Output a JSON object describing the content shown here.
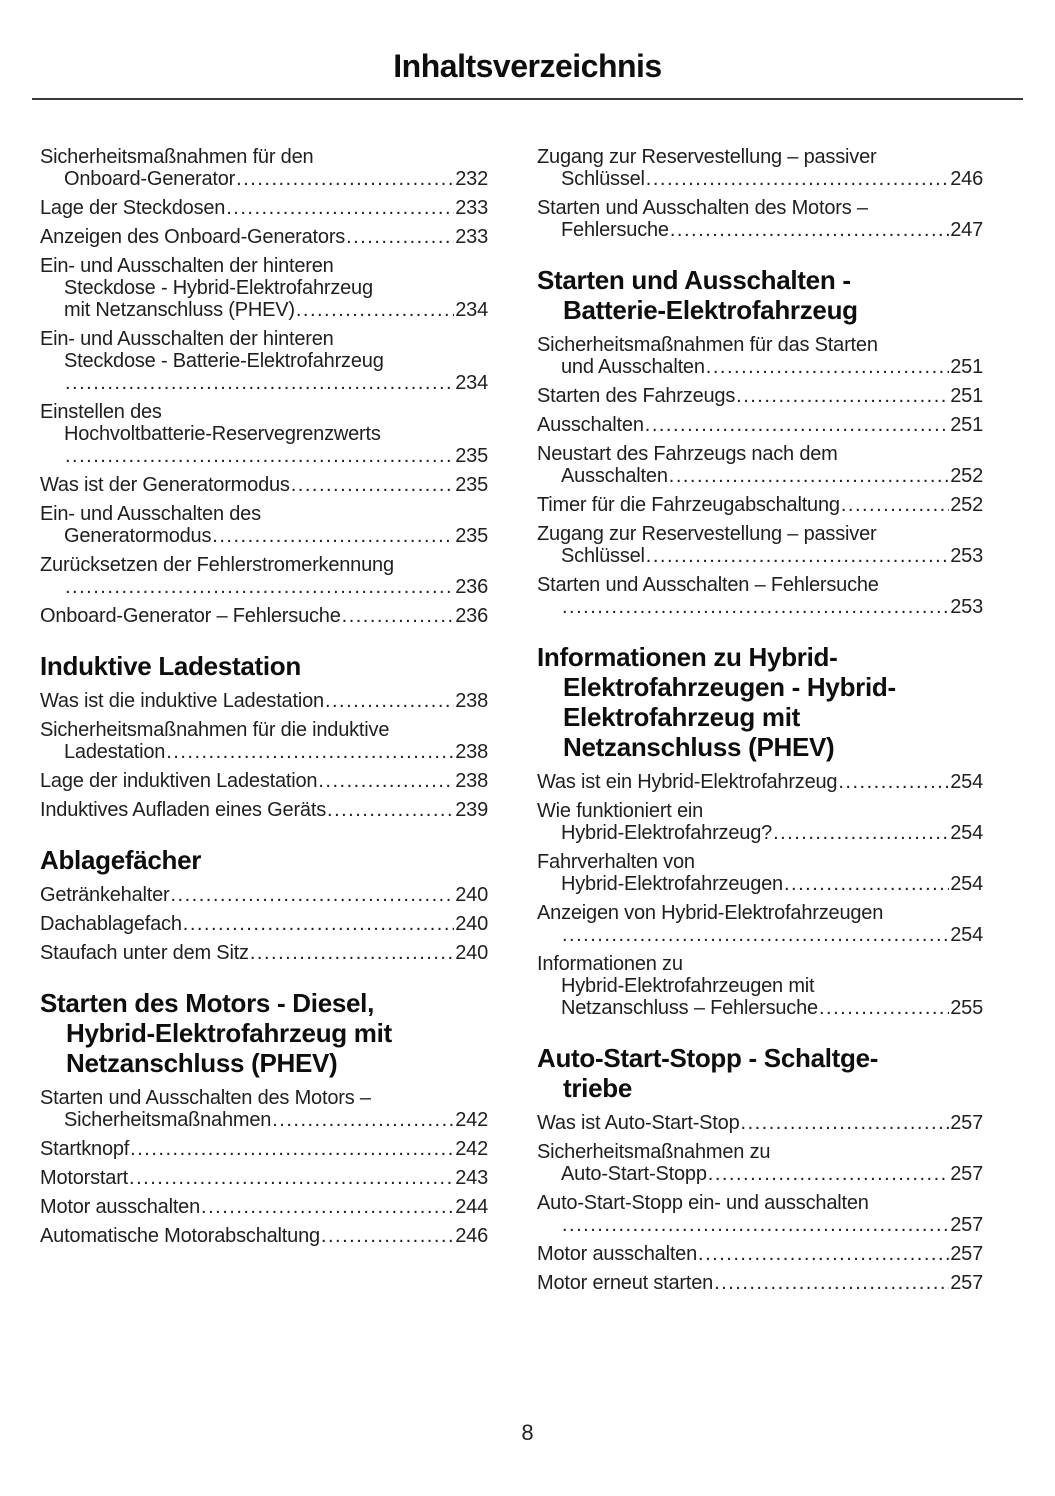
{
  "page": {
    "title": "Inhaltsverzeichnis",
    "page_number": "8",
    "text_color": "#1f1f21",
    "heading_color": "#0e0e10",
    "rule_color": "#3a3a3a",
    "background_color": "#ffffff"
  },
  "toc": {
    "left_column": [
      {
        "type": "entry",
        "lines": [
          "Sicherheitsmaßnahmen für den",
          "Onboard-Generator"
        ],
        "page": "232"
      },
      {
        "type": "entry",
        "lines": [
          "Lage der Steckdosen"
        ],
        "page": "233"
      },
      {
        "type": "entry",
        "lines": [
          "Anzeigen des Onboard-Generators"
        ],
        "page": "233"
      },
      {
        "type": "entry",
        "lines": [
          "Ein- und Ausschalten der hinteren",
          "Steckdose - Hybrid-Elektrofahrzeug",
          "mit Netzanschluss (PHEV)"
        ],
        "page": "234"
      },
      {
        "type": "entry",
        "lines": [
          "Ein- und Ausschalten der hinteren",
          "Steckdose - Batterie-Elektrofahrzeug"
        ],
        "page": "234",
        "dots_own_line": true
      },
      {
        "type": "entry",
        "lines": [
          "Einstellen des",
          "Hochvoltbatterie-Reservegrenzwerts"
        ],
        "page": "235",
        "dots_own_line": true
      },
      {
        "type": "entry",
        "lines": [
          "Was ist der Generatormodus"
        ],
        "page": "235"
      },
      {
        "type": "entry",
        "lines": [
          "Ein- und Ausschalten des",
          "Generatormodus"
        ],
        "page": "235"
      },
      {
        "type": "entry",
        "lines": [
          "Zurücksetzen der Fehlerstromerkennung"
        ],
        "page": "236",
        "dots_own_line": true
      },
      {
        "type": "entry",
        "lines": [
          "Onboard-Generator – Fehlersuche"
        ],
        "page": "236"
      },
      {
        "type": "heading",
        "lines": [
          "Induktive Ladestation"
        ]
      },
      {
        "type": "entry",
        "lines": [
          "Was ist die induktive Ladestation"
        ],
        "page": "238"
      },
      {
        "type": "entry",
        "lines": [
          "Sicherheitsmaßnahmen für die induktive",
          "Ladestation"
        ],
        "page": "238"
      },
      {
        "type": "entry",
        "lines": [
          "Lage der induktiven Ladestation"
        ],
        "page": "238"
      },
      {
        "type": "entry",
        "lines": [
          "Induktives Aufladen eines Geräts"
        ],
        "page": "239"
      },
      {
        "type": "heading",
        "lines": [
          "Ablagefächer"
        ]
      },
      {
        "type": "entry",
        "lines": [
          "Getränkehalter"
        ],
        "page": "240"
      },
      {
        "type": "entry",
        "lines": [
          "Dachablagefach"
        ],
        "page": "240"
      },
      {
        "type": "entry",
        "lines": [
          "Staufach unter dem Sitz"
        ],
        "page": "240"
      },
      {
        "type": "heading",
        "lines": [
          "Starten des Motors - Diesel,",
          "Hybrid-Elektrofahrzeug mit",
          "Netzanschluss (PHEV)"
        ]
      },
      {
        "type": "entry",
        "lines": [
          "Starten und Ausschalten des Motors –",
          "Sicherheitsmaßnahmen"
        ],
        "page": "242"
      },
      {
        "type": "entry",
        "lines": [
          "Startknopf"
        ],
        "page": "242"
      },
      {
        "type": "entry",
        "lines": [
          "Motorstart"
        ],
        "page": "243"
      },
      {
        "type": "entry",
        "lines": [
          "Motor ausschalten"
        ],
        "page": "244"
      },
      {
        "type": "entry",
        "lines": [
          "Automatische Motorabschaltung"
        ],
        "page": "246"
      }
    ],
    "right_column": [
      {
        "type": "entry",
        "lines": [
          "Zugang zur Reservestellung – passiver",
          "Schlüssel"
        ],
        "page": "246"
      },
      {
        "type": "entry",
        "lines": [
          "Starten und Ausschalten des Motors –",
          "Fehlersuche"
        ],
        "page": "247"
      },
      {
        "type": "heading",
        "lines": [
          "Starten und Ausschalten -",
          "Batterie-Elektrofahrzeug"
        ]
      },
      {
        "type": "entry",
        "lines": [
          "Sicherheitsmaßnahmen für das Starten",
          "und Ausschalten"
        ],
        "page": "251"
      },
      {
        "type": "entry",
        "lines": [
          "Starten des Fahrzeugs"
        ],
        "page": "251"
      },
      {
        "type": "entry",
        "lines": [
          "Ausschalten"
        ],
        "page": "251"
      },
      {
        "type": "entry",
        "lines": [
          "Neustart des Fahrzeugs nach dem",
          "Ausschalten"
        ],
        "page": "252"
      },
      {
        "type": "entry",
        "lines": [
          "Timer für die Fahrzeugabschaltung"
        ],
        "page": "252"
      },
      {
        "type": "entry",
        "lines": [
          "Zugang zur Reservestellung – passiver",
          "Schlüssel"
        ],
        "page": "253"
      },
      {
        "type": "entry",
        "lines": [
          "Starten und Ausschalten – Fehlersuche"
        ],
        "page": "253",
        "dots_own_line": true
      },
      {
        "type": "heading",
        "lines": [
          "Informationen zu Hybrid-",
          "Elektrofahrzeugen - Hybrid-",
          "Elektrofahrzeug mit",
          "Netzanschluss (PHEV)"
        ]
      },
      {
        "type": "entry",
        "lines": [
          "Was ist ein Hybrid-Elektrofahrzeug"
        ],
        "page": "254"
      },
      {
        "type": "entry",
        "lines": [
          "Wie funktioniert ein",
          "Hybrid-Elektrofahrzeug?"
        ],
        "page": "254"
      },
      {
        "type": "entry",
        "lines": [
          "Fahrverhalten von",
          "Hybrid-Elektrofahrzeugen"
        ],
        "page": "254"
      },
      {
        "type": "entry",
        "lines": [
          "Anzeigen von Hybrid-Elektrofahrzeugen"
        ],
        "page": "254",
        "dots_own_line": true
      },
      {
        "type": "entry",
        "lines": [
          "Informationen zu",
          "Hybrid-Elektrofahrzeugen mit",
          "Netzanschluss – Fehlersuche"
        ],
        "page": "255"
      },
      {
        "type": "heading",
        "lines": [
          "Auto-Start-Stopp - Schaltge-",
          "triebe"
        ]
      },
      {
        "type": "entry",
        "lines": [
          "Was ist Auto-Start-Stop"
        ],
        "page": "257"
      },
      {
        "type": "entry",
        "lines": [
          "Sicherheitsmaßnahmen zu",
          "Auto-Start-Stopp"
        ],
        "page": "257"
      },
      {
        "type": "entry",
        "lines": [
          "Auto-Start-Stopp ein- und ausschalten"
        ],
        "page": "257",
        "dots_own_line": true
      },
      {
        "type": "entry",
        "lines": [
          "Motor ausschalten"
        ],
        "page": "257"
      },
      {
        "type": "entry",
        "lines": [
          "Motor erneut starten"
        ],
        "page": "257"
      }
    ]
  }
}
